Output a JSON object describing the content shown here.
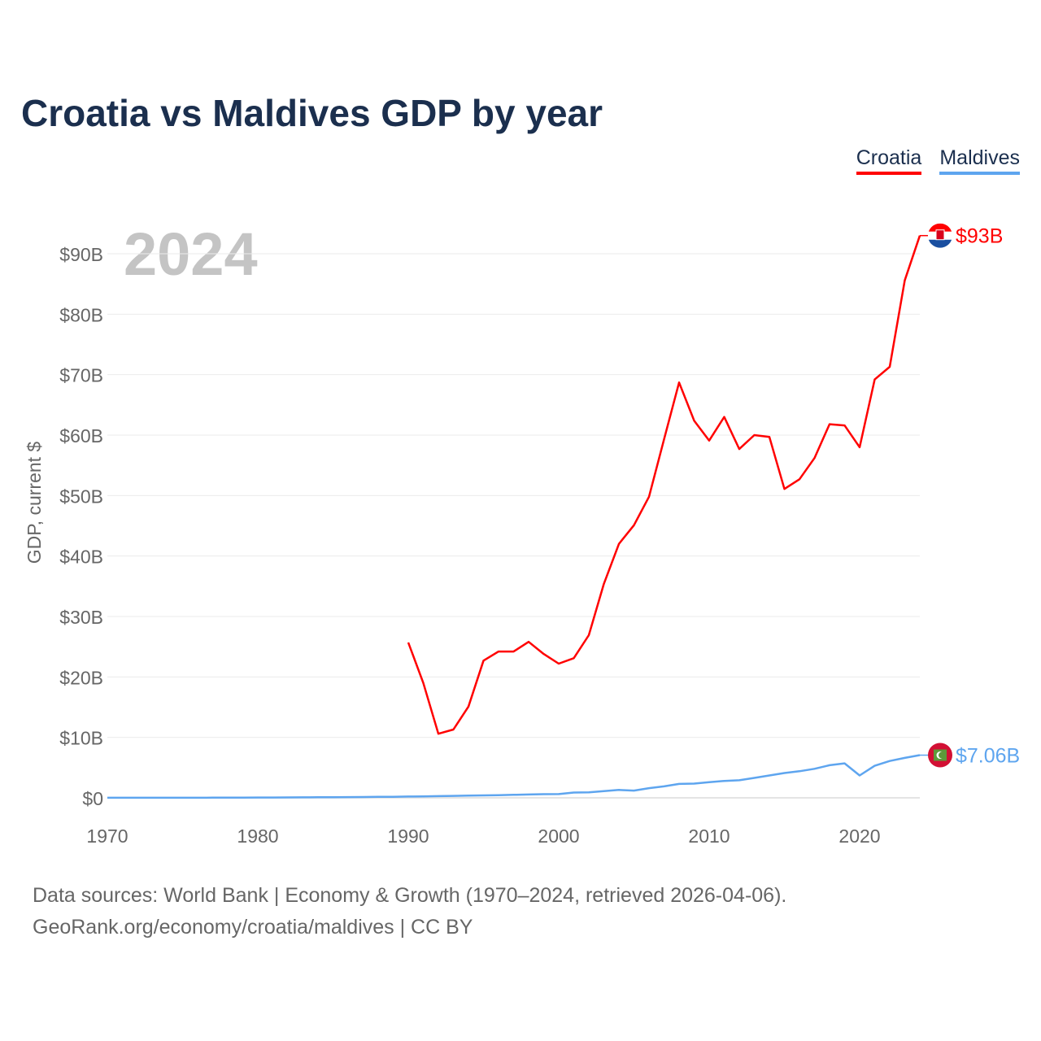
{
  "chart_data": {
    "type": "line",
    "title": "Croatia vs Maldives GDP by year",
    "ylabel": "GDP, current $",
    "xlabel": "",
    "year_watermark": "2024",
    "xlim": [
      1970,
      2024
    ],
    "ylim": [
      0,
      90
    ],
    "x_ticks": [
      1970,
      1980,
      1990,
      2000,
      2010,
      2020
    ],
    "y_ticks": [
      0,
      10,
      20,
      30,
      40,
      50,
      60,
      70,
      80,
      90
    ],
    "y_tick_labels": [
      "$0",
      "$10B",
      "$20B",
      "$30B",
      "$40B",
      "$50B",
      "$60B",
      "$70B",
      "$80B",
      "$90B"
    ],
    "grid": true,
    "legend_position": "top-right",
    "series": [
      {
        "name": "Croatia",
        "color": "#ff0000",
        "end_label": "$93B",
        "flag": "croatia-flag",
        "x": [
          1990,
          1991,
          1992,
          1993,
          1994,
          1995,
          1996,
          1997,
          1998,
          1999,
          2000,
          2001,
          2002,
          2003,
          2004,
          2005,
          2006,
          2007,
          2008,
          2009,
          2010,
          2011,
          2012,
          2013,
          2014,
          2015,
          2016,
          2017,
          2018,
          2019,
          2020,
          2021,
          2022,
          2023,
          2024
        ],
        "values": [
          25.7,
          19.0,
          10.6,
          11.3,
          15.1,
          22.7,
          24.2,
          24.2,
          25.8,
          23.8,
          22.2,
          23.1,
          26.9,
          35.4,
          42.0,
          45.1,
          49.8,
          59.3,
          68.7,
          62.4,
          59.1,
          63.0,
          57.7,
          60.0,
          59.7,
          51.1,
          52.7,
          56.2,
          61.8,
          61.6,
          58.0,
          69.2,
          71.3,
          85.6,
          93.0
        ]
      },
      {
        "name": "Maldives",
        "color": "#5ea5ef",
        "end_label": "$7.06B",
        "flag": "maldives-flag",
        "x": [
          1970,
          1971,
          1972,
          1973,
          1974,
          1975,
          1976,
          1977,
          1978,
          1979,
          1980,
          1981,
          1982,
          1983,
          1984,
          1985,
          1986,
          1987,
          1988,
          1989,
          1990,
          1991,
          1992,
          1993,
          1994,
          1995,
          1996,
          1997,
          1998,
          1999,
          2000,
          2001,
          2002,
          2003,
          2004,
          2005,
          2006,
          2007,
          2008,
          2009,
          2010,
          2011,
          2012,
          2013,
          2014,
          2015,
          2016,
          2017,
          2018,
          2019,
          2020,
          2021,
          2022,
          2023,
          2024
        ],
        "values": [
          0.02,
          0.02,
          0.02,
          0.02,
          0.02,
          0.02,
          0.02,
          0.03,
          0.03,
          0.04,
          0.05,
          0.06,
          0.07,
          0.08,
          0.1,
          0.11,
          0.12,
          0.14,
          0.16,
          0.18,
          0.21,
          0.24,
          0.28,
          0.32,
          0.36,
          0.4,
          0.45,
          0.5,
          0.55,
          0.6,
          0.62,
          0.87,
          0.9,
          1.1,
          1.3,
          1.2,
          1.6,
          1.9,
          2.3,
          2.35,
          2.6,
          2.8,
          2.9,
          3.3,
          3.7,
          4.1,
          4.4,
          4.8,
          5.4,
          5.7,
          3.7,
          5.3,
          6.1,
          6.6,
          7.06
        ]
      }
    ],
    "source_line1": "Data sources: World Bank | Economy & Growth (1970–2024, retrieved 2026-04-06).",
    "source_line2": "GeoRank.org/economy/croatia/maldives | CC BY"
  }
}
